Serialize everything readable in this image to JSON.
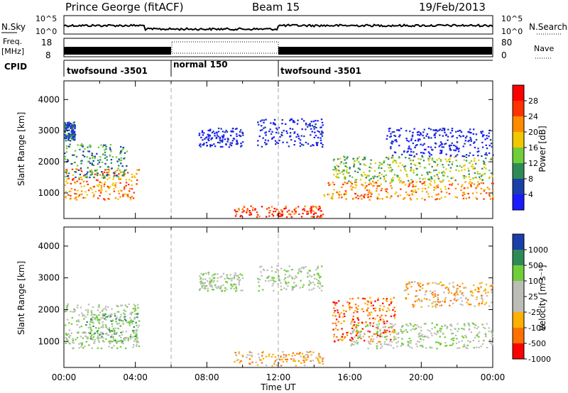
{
  "header": {
    "title": "Prince George (fitACF)",
    "beam": "Beam 15",
    "date": "19/Feb/2013"
  },
  "top_panels": {
    "nsky": {
      "label": "N.Sky",
      "right_label": "N.Search",
      "ticks": [
        "10^5",
        "10^0"
      ],
      "right_ticks": [
        "10^5",
        "10^0"
      ]
    },
    "freq": {
      "label_line1": "Freq.",
      "label_line2": "[MHz]",
      "ticks": [
        "18",
        "8"
      ],
      "right_label": "Nave",
      "right_ticks": [
        "80",
        "0"
      ]
    },
    "cpid": {
      "label": "CPID",
      "segments": [
        {
          "name": "twofsound -3501",
          "start_hour": 0,
          "end_hour": 6
        },
        {
          "name": "normal 150",
          "start_hour": 6,
          "end_hour": 12
        },
        {
          "name": "twofsound -3501",
          "start_hour": 12,
          "end_hour": 24
        }
      ]
    }
  },
  "chart_data": [
    {
      "type": "heatmap",
      "name": "power",
      "ylabel": "Slant Range [km]",
      "yticks": [
        1000,
        2000,
        3000,
        4000
      ],
      "ylim": [
        180,
        4600
      ],
      "colorbar_label": "Power [dB]",
      "colorbar_ticks": [
        "4",
        "8",
        "12",
        "16",
        "20",
        "24",
        "28"
      ],
      "colors": [
        "#1a1aff",
        "#1a3fa8",
        "#2e8b57",
        "#6fce3a",
        "#f0c800",
        "#ff8c00",
        "#ff3300",
        "#ff0000"
      ],
      "regions": [
        {
          "x0": 0.0,
          "x1": 4.2,
          "y0": 800,
          "y1": 1800,
          "level": 5
        },
        {
          "x0": 0.0,
          "x1": 3.5,
          "y0": 1500,
          "y1": 2600,
          "level": 2
        },
        {
          "x0": 0.0,
          "x1": 0.6,
          "y0": 2700,
          "y1": 3300,
          "level": 1
        },
        {
          "x0": 7.5,
          "x1": 10.0,
          "y0": 2500,
          "y1": 3100,
          "level": 0
        },
        {
          "x0": 10.8,
          "x1": 14.5,
          "y0": 2500,
          "y1": 3400,
          "level": 0
        },
        {
          "x0": 9.5,
          "x1": 14.5,
          "y0": 250,
          "y1": 600,
          "level": 6
        },
        {
          "x0": 14.5,
          "x1": 24.0,
          "y0": 800,
          "y1": 1400,
          "level": 5
        },
        {
          "x0": 15.0,
          "x1": 24.0,
          "y0": 1400,
          "y1": 2200,
          "level": 3
        },
        {
          "x0": 18.0,
          "x1": 24.0,
          "y0": 2200,
          "y1": 3100,
          "level": 0
        }
      ]
    },
    {
      "type": "heatmap",
      "name": "velocity",
      "xlabel": "Time UT",
      "ylabel": "Slant Range [km]",
      "yticks": [
        1000,
        2000,
        3000,
        4000
      ],
      "ylim": [
        180,
        4600
      ],
      "xticks": [
        "00:00",
        "04:00",
        "08:00",
        "12:00",
        "16:00",
        "20:00",
        "00:00"
      ],
      "xlim": [
        0,
        24
      ],
      "colorbar_label": "Velocity [m s⁻¹]",
      "colorbar_ticks": [
        "1000",
        "500",
        "100",
        "25",
        "-25",
        "-100",
        "-500",
        "-1000"
      ],
      "colors": [
        "#1a3fa8",
        "#2e8b57",
        "#6fce3a",
        "#bdbdb8",
        "#bdbdb8",
        "#ffb000",
        "#ff7000",
        "#ff0000"
      ],
      "regions": [
        {
          "x0": 0.0,
          "x1": 4.2,
          "y0": 800,
          "y1": 2200,
          "level": 3
        },
        {
          "x0": 1.2,
          "x1": 4.2,
          "y0": 1000,
          "y1": 1900,
          "level": 2
        },
        {
          "x0": 7.5,
          "x1": 10.0,
          "y0": 2600,
          "y1": 3200,
          "level": 3
        },
        {
          "x0": 10.8,
          "x1": 14.5,
          "y0": 2600,
          "y1": 3400,
          "level": 3
        },
        {
          "x0": 9.5,
          "x1": 14.5,
          "y0": 250,
          "y1": 700,
          "level": 5
        },
        {
          "x0": 15.0,
          "x1": 18.5,
          "y0": 1000,
          "y1": 2400,
          "level": 6
        },
        {
          "x0": 16.0,
          "x1": 24.0,
          "y0": 800,
          "y1": 1600,
          "level": 3
        },
        {
          "x0": 19.0,
          "x1": 24.0,
          "y0": 2100,
          "y1": 2900,
          "level": 5
        }
      ]
    }
  ]
}
